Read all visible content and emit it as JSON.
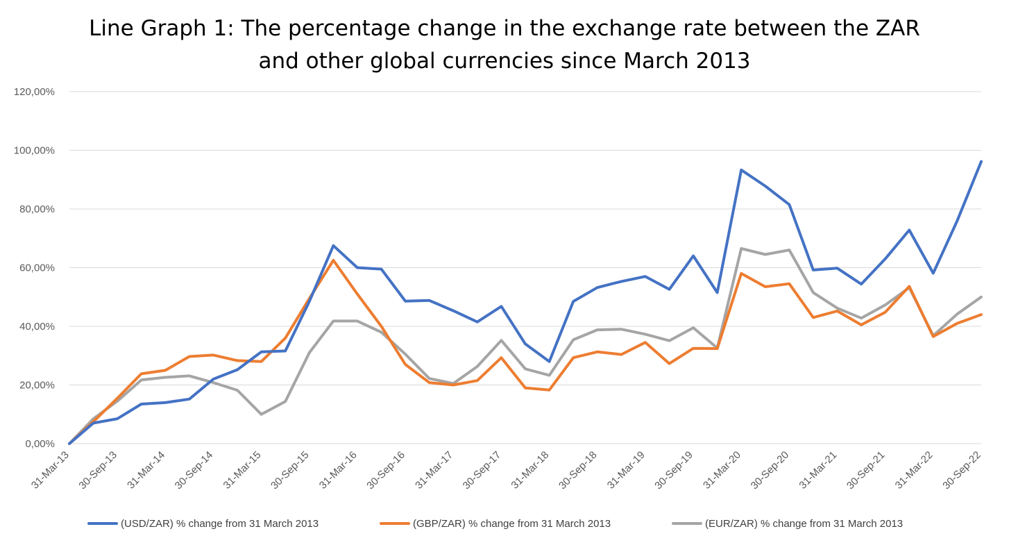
{
  "chart_data": {
    "type": "line",
    "title_lines": [
      "Line Graph 1: The percentage change in the exchange rate between the ZAR",
      "and other global currencies since March 2013"
    ],
    "xlabel": "",
    "ylabel": "",
    "ylim": [
      0,
      120
    ],
    "y_ticks": [
      "0,00%",
      "20,00%",
      "40,00%",
      "60,00%",
      "80,00%",
      "100,00%",
      "120,00%"
    ],
    "grid": true,
    "legend_position": "bottom",
    "x_tick_labels": [
      "31-Mar-13",
      "30-Sep-13",
      "31-Mar-14",
      "30-Sep-14",
      "31-Mar-15",
      "30-Sep-15",
      "31-Mar-16",
      "30-Sep-16",
      "31-Mar-17",
      "30-Sep-17",
      "31-Mar-18",
      "30-Sep-18",
      "31-Mar-19",
      "30-Sep-19",
      "31-Mar-20",
      "30-Sep-20",
      "31-Mar-21",
      "30-Sep-21",
      "31-Mar-22",
      "30-Sep-22"
    ],
    "points_per_tick": 2,
    "series": [
      {
        "name": "(USD/ZAR) % change from 31 March 2013",
        "color": "#4472c4",
        "values": [
          0.0,
          7.0,
          8.5,
          13.5,
          14.0,
          15.2,
          22.0,
          25.2,
          31.3,
          31.6,
          48.5,
          67.5,
          60.0,
          59.5,
          48.6,
          48.8,
          45.3,
          41.5,
          46.8,
          34.0,
          28.0,
          48.5,
          53.2,
          55.3,
          57.0,
          52.6,
          64.0,
          51.5,
          93.3,
          87.8,
          81.5,
          59.2,
          59.8,
          54.4,
          63.0,
          72.8,
          58.1,
          76.0,
          96.2
        ]
      },
      {
        "name": "(GBP/ZAR) % change from 31 March 2013",
        "color": "#ed7d31",
        "values": [
          0.0,
          7.5,
          15.5,
          23.8,
          25.0,
          29.7,
          30.2,
          28.3,
          28.0,
          36.0,
          49.5,
          62.5,
          51.0,
          40.0,
          27.0,
          20.8,
          20.0,
          21.5,
          29.3,
          19.0,
          18.3,
          29.3,
          31.3,
          30.4,
          34.5,
          27.3,
          32.5,
          32.4,
          58.0,
          53.5,
          54.5,
          43.0,
          45.2,
          40.5,
          44.8,
          53.6,
          36.5,
          41.0,
          44.0
        ]
      },
      {
        "name": "(EUR/ZAR) % change from 31 March 2013",
        "color": "#a5a5a5",
        "values": [
          0.0,
          8.5,
          14.5,
          21.7,
          22.6,
          23.1,
          20.8,
          18.2,
          10.0,
          14.4,
          31.0,
          41.8,
          41.8,
          38.0,
          30.5,
          22.2,
          20.5,
          26.3,
          35.2,
          25.5,
          23.3,
          35.4,
          38.8,
          39.0,
          37.3,
          35.1,
          39.5,
          32.6,
          66.5,
          64.5,
          66.0,
          51.5,
          46.2,
          42.8,
          47.3,
          53.2,
          36.8,
          44.2,
          50.0
        ]
      }
    ]
  }
}
